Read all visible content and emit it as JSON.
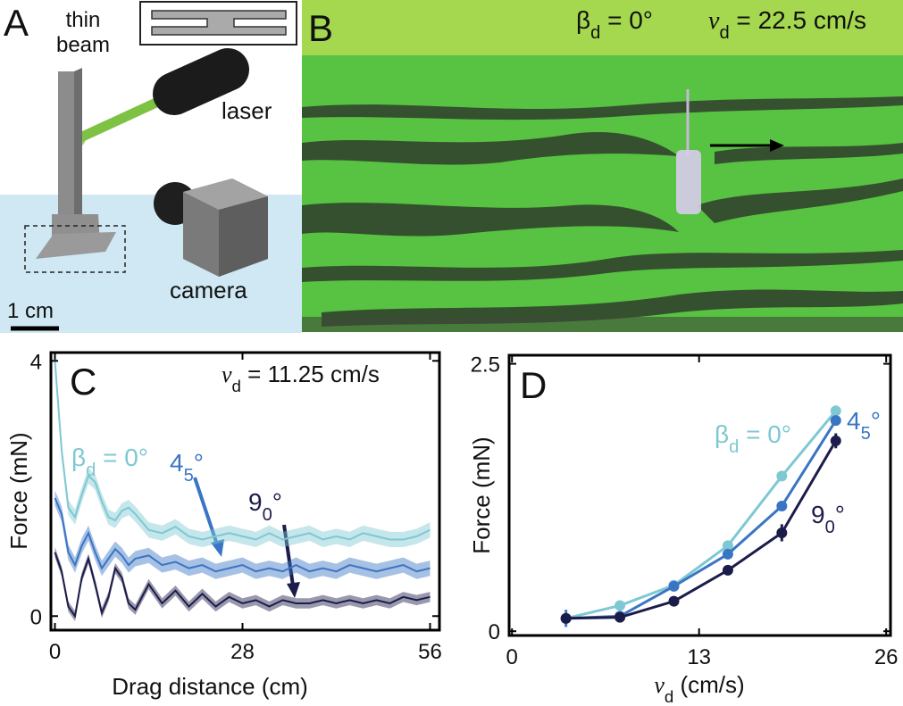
{
  "panel_a": {
    "label": "A",
    "beam_label": [
      "thin",
      "beam"
    ],
    "laser_label": "laser",
    "camera_label": "camera",
    "scale_label": "1 cm"
  },
  "panel_b": {
    "label": "B",
    "angle": "βd = 0°",
    "speed": "vd = 22.5 cm/s"
  },
  "chart_data": [
    {
      "type": "line",
      "panel_label": "C",
      "annotation": "vd = 11.25 cm/s",
      "x_label": "Drag distance (cm)",
      "y_label": "Force (mN)",
      "xlim": [
        -0.6,
        57.4
      ],
      "ylim": [
        -0.22,
        4.13
      ],
      "xticks": [
        0,
        28,
        56
      ],
      "yticks": [
        0,
        4
      ],
      "x": [
        0,
        1,
        2,
        3,
        4,
        5,
        6,
        7,
        8,
        9,
        10,
        11,
        12,
        14,
        16,
        18,
        20,
        22,
        24,
        26,
        28,
        30,
        32,
        34,
        36,
        38,
        40,
        42,
        44,
        46,
        48,
        50,
        52,
        54,
        56
      ],
      "series": [
        {
          "name": "βd = 0°",
          "color": "#7ec8d3",
          "band": 0.12,
          "values": [
            4.0,
            2.6,
            1.7,
            1.55,
            1.9,
            2.2,
            2.1,
            1.8,
            1.55,
            1.5,
            1.65,
            1.7,
            1.6,
            1.35,
            1.3,
            1.4,
            1.25,
            1.2,
            1.25,
            1.3,
            1.25,
            1.2,
            1.3,
            1.2,
            1.25,
            1.3,
            1.2,
            1.25,
            1.2,
            1.3,
            1.25,
            1.2,
            1.2,
            1.25,
            1.35
          ]
        },
        {
          "name": "45°",
          "color": "#3a75c4",
          "band": 0.12,
          "values": [
            1.85,
            1.6,
            1.0,
            0.8,
            1.1,
            1.3,
            1.0,
            0.75,
            0.9,
            1.05,
            0.95,
            0.8,
            0.9,
            0.95,
            0.8,
            0.85,
            0.75,
            0.8,
            0.7,
            0.75,
            0.8,
            0.7,
            0.75,
            0.7,
            0.8,
            0.7,
            0.75,
            0.7,
            0.8,
            0.75,
            0.7,
            0.75,
            0.8,
            0.7,
            0.75
          ]
        },
        {
          "name": "90°",
          "color": "#1c1c4a",
          "band": 0.08,
          "values": [
            1.0,
            0.7,
            0.15,
            0.0,
            0.6,
            0.9,
            0.5,
            0.05,
            0.3,
            0.75,
            0.6,
            0.2,
            0.1,
            0.5,
            0.2,
            0.4,
            0.15,
            0.35,
            0.15,
            0.3,
            0.2,
            0.25,
            0.15,
            0.25,
            0.2,
            0.2,
            0.25,
            0.2,
            0.25,
            0.2,
            0.25,
            0.2,
            0.3,
            0.25,
            0.3
          ]
        }
      ]
    },
    {
      "type": "line",
      "panel_label": "D",
      "markers": true,
      "x_label": "vd (cm/s)",
      "y_label": "Force (mN)",
      "xlim": [
        -0.2,
        26.3
      ],
      "ylim": [
        -0.04,
        2.58
      ],
      "xticks": [
        0,
        13,
        26
      ],
      "yticks": [
        0,
        2.5
      ],
      "x": [
        3.75,
        7.5,
        11.25,
        15,
        18.75,
        22.5
      ],
      "series": [
        {
          "name": "βd = 0°",
          "color": "#7ec8d3",
          "values": [
            0.12,
            0.24,
            0.43,
            0.8,
            1.45,
            2.06
          ],
          "errors": [
            0.02,
            0.02,
            0.02,
            0.02,
            0.02,
            0.05
          ]
        },
        {
          "name": "45°",
          "color": "#3a75c4",
          "values": [
            0.12,
            0.14,
            0.42,
            0.72,
            1.17,
            1.97
          ],
          "errors": [
            0.08,
            0.02,
            0.02,
            0.02,
            0.02,
            0.03
          ]
        },
        {
          "name": "90°",
          "color": "#1c1c4a",
          "values": [
            0.12,
            0.13,
            0.28,
            0.57,
            0.92,
            1.78
          ],
          "errors": [
            0.03,
            0.02,
            0.02,
            0.02,
            0.08,
            0.07
          ]
        }
      ]
    }
  ]
}
